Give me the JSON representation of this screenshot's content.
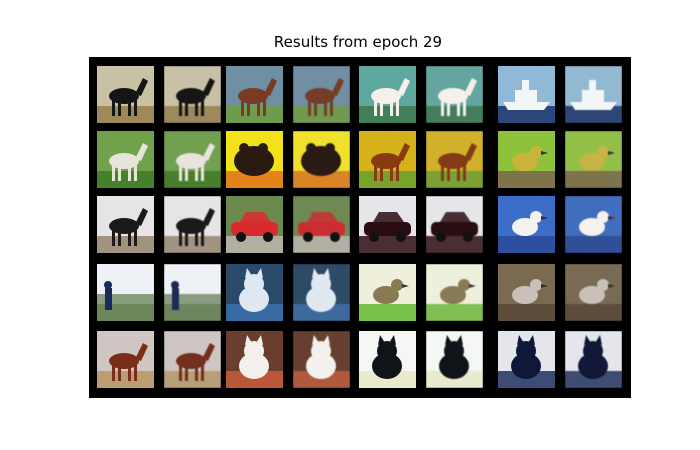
{
  "figure": {
    "title": "Results from epoch 29"
  },
  "grid": {
    "rows": 5,
    "pairs_per_row": 4,
    "cells": [
      [
        {
          "subject": "horse",
          "colors": {
            "bg": "#c9c1a4",
            "fg": "#151515",
            "ground": "#9a8350"
          }
        },
        {
          "subject": "horse",
          "colors": {
            "bg": "#6f8fa5",
            "fg": "#7a3b22",
            "ground": "#6f9c43"
          }
        },
        {
          "subject": "deer",
          "colors": {
            "bg": "#5ea8a0",
            "fg": "#f5f0ea",
            "ground": "#3d7a50"
          }
        },
        {
          "subject": "ship",
          "colors": {
            "bg": "#8fb9d6",
            "fg": "#f2f6f7",
            "ground": "#203a70"
          }
        }
      ],
      [
        {
          "subject": "horse",
          "colors": {
            "bg": "#6fa24a",
            "fg": "#e8e4dc",
            "ground": "#3f7d25"
          }
        },
        {
          "subject": "frog",
          "colors": {
            "bg": "#f3e21a",
            "fg": "#2a1a12",
            "ground": "#e07a18"
          }
        },
        {
          "subject": "horse",
          "colors": {
            "bg": "#d5b11a",
            "fg": "#8a3a12",
            "ground": "#6ea22c"
          }
        },
        {
          "subject": "bird",
          "colors": {
            "bg": "#8fc23c",
            "fg": "#c9b43a",
            "ground": "#7c6a4a"
          }
        }
      ],
      [
        {
          "subject": "horse",
          "colors": {
            "bg": "#e6e4e6",
            "fg": "#1a1a1a",
            "ground": "#9a8a74"
          }
        },
        {
          "subject": "car",
          "colors": {
            "bg": "#6c8a4e",
            "fg": "#d92a2e",
            "ground": "#b9b3a8"
          }
        },
        {
          "subject": "car",
          "colors": {
            "bg": "#e6e6ea",
            "fg": "#2a0d12",
            "ground": "#3a1a20"
          }
        },
        {
          "subject": "bird",
          "colors": {
            "bg": "#3c6dc8",
            "fg": "#f4f2ee",
            "ground": "#2a4c9a"
          }
        }
      ],
      [
        {
          "subject": "field",
          "colors": {
            "bg": "#eef2f6",
            "fg": "#1a2a5a",
            "ground": "#5e7a4a"
          }
        },
        {
          "subject": "dog",
          "colors": {
            "bg": "#2a4a6a",
            "fg": "#dfe8f2",
            "ground": "#3a6fa8"
          }
        },
        {
          "subject": "bird",
          "colors": {
            "bg": "#eef0dc",
            "fg": "#8a7a52",
            "ground": "#6dbb3a"
          }
        },
        {
          "subject": "ostrich",
          "colors": {
            "bg": "#7a6a50",
            "fg": "#c9c0b8",
            "ground": "#5a4a38"
          }
        }
      ],
      [
        {
          "subject": "horse",
          "colors": {
            "bg": "#cfc6c4",
            "fg": "#7a2e1a",
            "ground": "#b89a6a"
          }
        },
        {
          "subject": "dog",
          "colors": {
            "bg": "#6a3e2e",
            "fg": "#f4f0ec",
            "ground": "#c25a3a"
          }
        },
        {
          "subject": "dog",
          "colors": {
            "bg": "#f4f7f4",
            "fg": "#101418",
            "ground": "#e8e8c8"
          }
        },
        {
          "subject": "cat",
          "colors": {
            "bg": "#e4e6ec",
            "fg": "#10183a",
            "ground": "#2a3a6a"
          }
        }
      ]
    ]
  }
}
